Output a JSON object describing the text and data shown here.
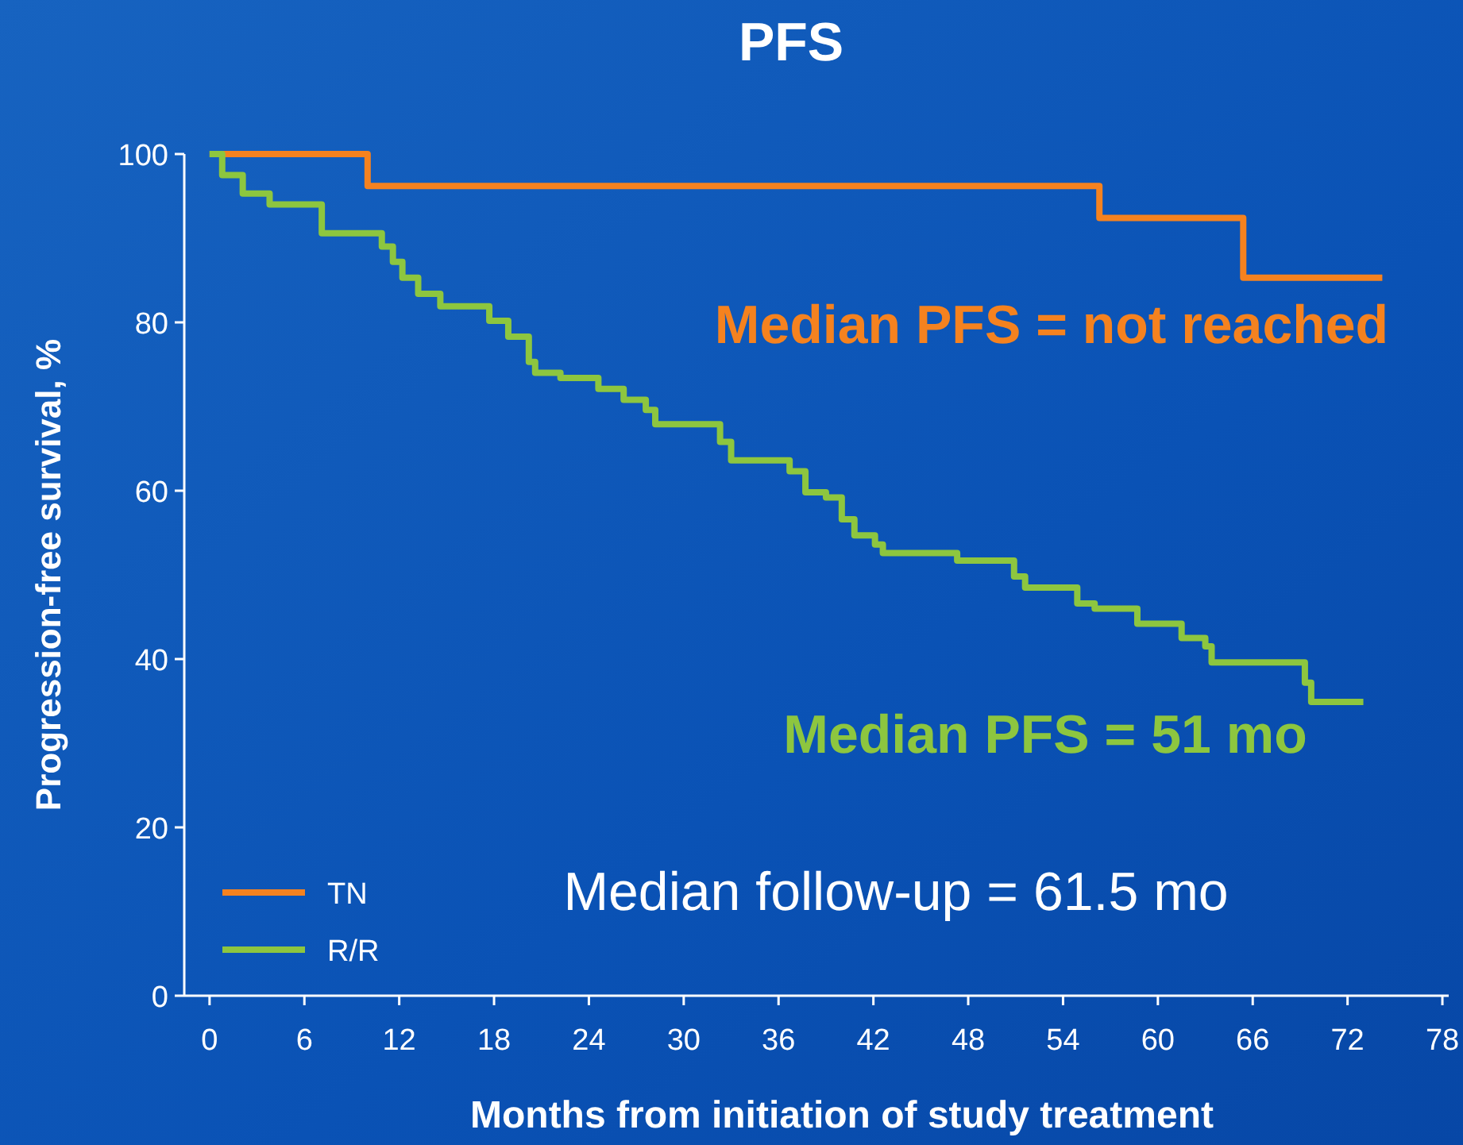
{
  "chart_data": {
    "type": "step",
    "title": "PFS",
    "xlabel": "Months from initiation of study treatment",
    "ylabel": "Progression-free survival, %",
    "xlim": [
      -1.6,
      78.4
    ],
    "xticks": [
      0,
      6,
      12,
      18,
      24,
      30,
      36,
      42,
      48,
      54,
      60,
      66,
      72,
      78
    ],
    "ylim": [
      0,
      100
    ],
    "yticks": [
      0,
      20,
      40,
      60,
      80,
      100
    ],
    "legend": "bottom left",
    "grid": false,
    "series": [
      {
        "name": "TN",
        "color": "#f5821f",
        "x": [
          0,
          10,
          56.3,
          65.4,
          74.2
        ],
        "values": [
          100,
          96.2,
          92.4,
          85.3,
          85.3
        ]
      },
      {
        "name": "R/R",
        "color": "#8dc63f",
        "x": [
          0,
          0.8,
          2.1,
          3.8,
          4.8,
          7.1,
          10.9,
          11.6,
          12.2,
          13.2,
          14.6,
          17.7,
          18.9,
          20.2,
          20.6,
          22.2,
          24.6,
          26.2,
          27.6,
          28.2,
          32.3,
          33,
          36.7,
          37.7,
          39,
          40,
          40.8,
          42.1,
          42.6,
          47.3,
          50.9,
          51.6,
          54.9,
          56,
          58.7,
          61.5,
          63,
          63.4,
          69.3,
          69.7,
          73
        ],
        "values": [
          100,
          97.5,
          95.3,
          94,
          94,
          90.6,
          89,
          87.2,
          85.3,
          83.4,
          81.9,
          80.2,
          78.3,
          75.3,
          74,
          73.4,
          72.1,
          70.8,
          69.6,
          67.9,
          65.8,
          63.6,
          62.3,
          59.8,
          59.2,
          56.6,
          54.7,
          53.6,
          52.6,
          51.7,
          49.8,
          48.5,
          46.6,
          46,
          44.2,
          42.5,
          41.5,
          39.6,
          37.2,
          34.9,
          34.9
        ]
      }
    ],
    "annotations": [
      "Median PFS = not reached",
      "Median PFS = 51 mo",
      "Median follow-up = 61.5 mo"
    ]
  }
}
